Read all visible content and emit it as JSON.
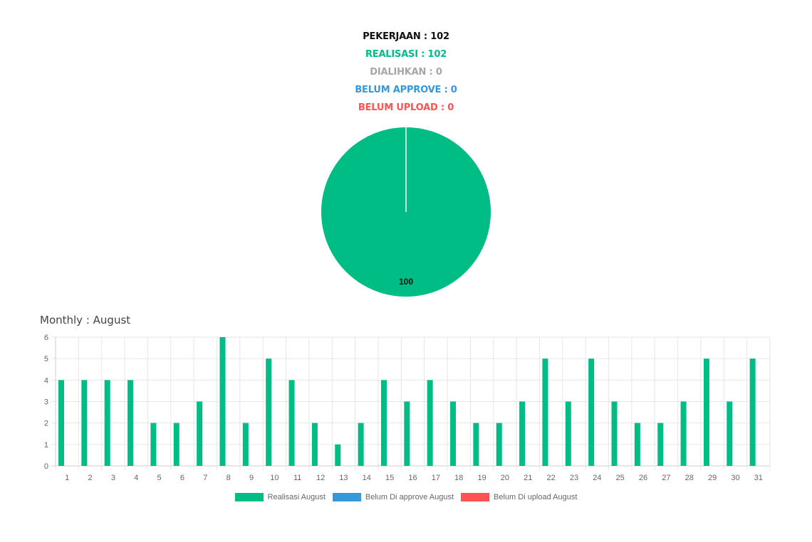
{
  "summary": {
    "pekerjaan": "PEKERJAAN : 102",
    "realisasi": "REALISASI : 102",
    "dialihkan": "DIALIHKAN : 0",
    "belum_approve": "BELUM APPROVE : 0",
    "belum_upload": "BELUM UPLOAD : 0"
  },
  "colors": {
    "pekerjaan": "#111111",
    "realisasi": "#00bd86",
    "dialihkan": "#a6a6a6",
    "belum_approve": "#3498db",
    "belum_upload": "#ff5252"
  },
  "monthly_title": "Monthly : August",
  "chart_data": [
    {
      "type": "pie",
      "categories": [
        "Realisasi",
        "Dialihkan",
        "Belum Approve",
        "Belum Upload"
      ],
      "values": [
        100,
        0,
        0,
        0
      ],
      "data_labels": [
        "100"
      ],
      "colors": [
        "#00bd86",
        "#a6a6a6",
        "#3498db",
        "#ff5252"
      ]
    },
    {
      "type": "bar",
      "categories": [
        "1",
        "2",
        "3",
        "4",
        "5",
        "6",
        "7",
        "8",
        "9",
        "10",
        "11",
        "12",
        "13",
        "14",
        "15",
        "16",
        "17",
        "18",
        "19",
        "20",
        "21",
        "22",
        "23",
        "24",
        "25",
        "26",
        "27",
        "28",
        "29",
        "30",
        "31"
      ],
      "series": [
        {
          "name": "Realisasi August",
          "color": "#00bd86",
          "values": [
            4,
            4,
            4,
            4,
            2,
            2,
            3,
            6,
            2,
            5,
            4,
            2,
            1,
            2,
            4,
            3,
            4,
            3,
            2,
            2,
            3,
            5,
            3,
            5,
            3,
            2,
            2,
            3,
            5,
            3,
            5
          ]
        },
        {
          "name": "Belum Di approve August",
          "color": "#3498db",
          "values": [
            0,
            0,
            0,
            0,
            0,
            0,
            0,
            0,
            0,
            0,
            0,
            0,
            0,
            0,
            0,
            0,
            0,
            0,
            0,
            0,
            0,
            0,
            0,
            0,
            0,
            0,
            0,
            0,
            0,
            0,
            0
          ]
        },
        {
          "name": "Belum Di upload August",
          "color": "#ff5252",
          "values": [
            0,
            0,
            0,
            0,
            0,
            0,
            0,
            0,
            0,
            0,
            0,
            0,
            0,
            0,
            0,
            0,
            0,
            0,
            0,
            0,
            0,
            0,
            0,
            0,
            0,
            0,
            0,
            0,
            0,
            0,
            0
          ]
        }
      ],
      "ylim": [
        0,
        6
      ],
      "yticks": [
        "0",
        "1",
        "2",
        "3",
        "4",
        "5",
        "6"
      ],
      "grid": true,
      "legend": "bottom"
    }
  ]
}
